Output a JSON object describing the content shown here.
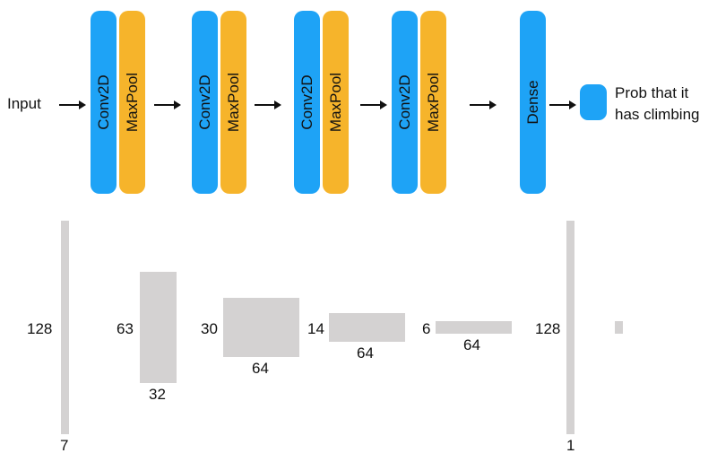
{
  "top": {
    "input_label": "Input",
    "stages": [
      {
        "conv": "Conv2D",
        "pool": "MaxPool"
      },
      {
        "conv": "Conv2D",
        "pool": "MaxPool"
      },
      {
        "conv": "Conv2D",
        "pool": "MaxPool"
      },
      {
        "conv": "Conv2D",
        "pool": "MaxPool"
      }
    ],
    "dense_label": "Dense",
    "output_line1": "Prob that it",
    "output_line2": "has climbing"
  },
  "shapes": {
    "input": {
      "height": "128",
      "channels": "7"
    },
    "stage1": {
      "height": "63",
      "channels": "32"
    },
    "stage2": {
      "height": "30",
      "channels": "64"
    },
    "stage3": {
      "height": "14",
      "channels": "64"
    },
    "stage4": {
      "height": "6",
      "channels": "64"
    },
    "dense": {
      "height": "128",
      "channels": "1"
    }
  },
  "colors": {
    "conv": "#1ea3f6",
    "pool": "#f6b42b",
    "tensor": "#d4d2d2"
  }
}
